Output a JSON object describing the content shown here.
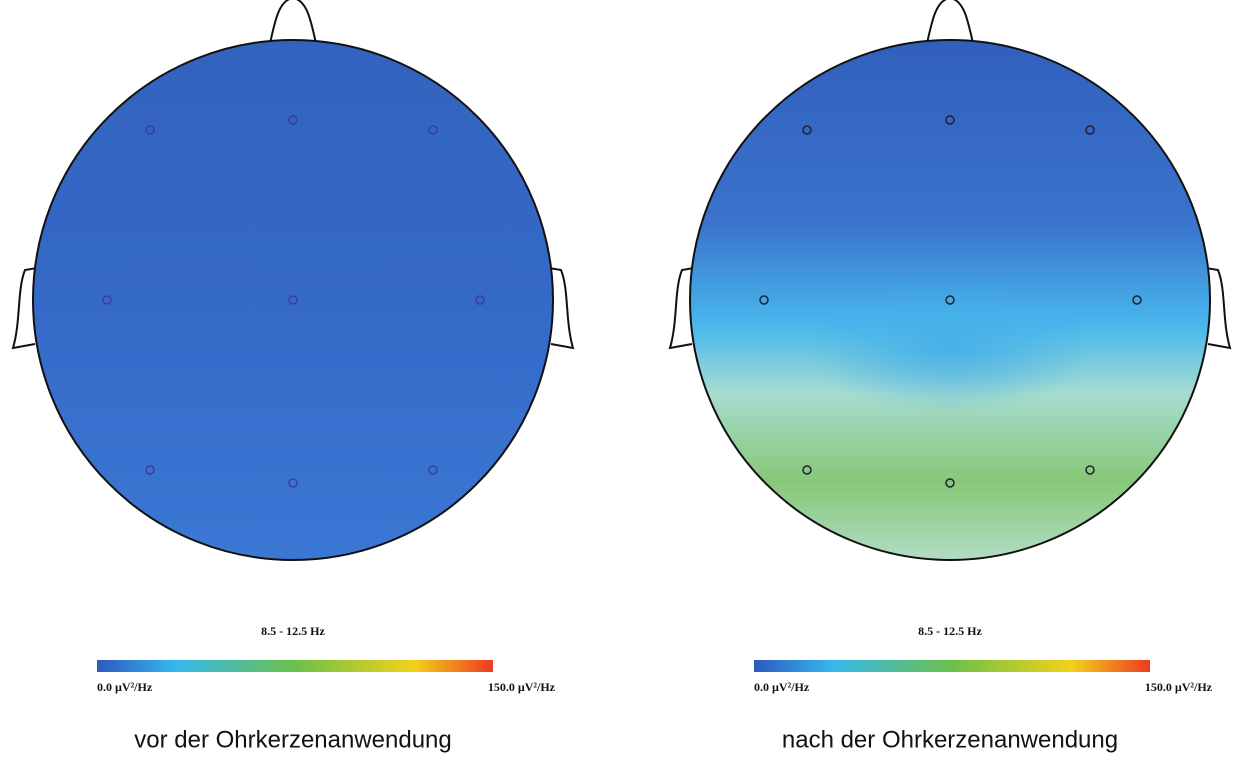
{
  "panels": [
    {
      "band": "8.5 - 12.5 Hz",
      "scale_min": "0.0 µV²/Hz",
      "scale_max": "150.0 µV²/Hz",
      "caption": "vor der Ohrkerzenanwendung"
    },
    {
      "band": "8.5 - 12.5 Hz",
      "scale_min": "0.0 µV²/Hz",
      "scale_max": "150.0 µV²/Hz",
      "caption": "nach der Ohrkerzenanwendung"
    }
  ]
}
